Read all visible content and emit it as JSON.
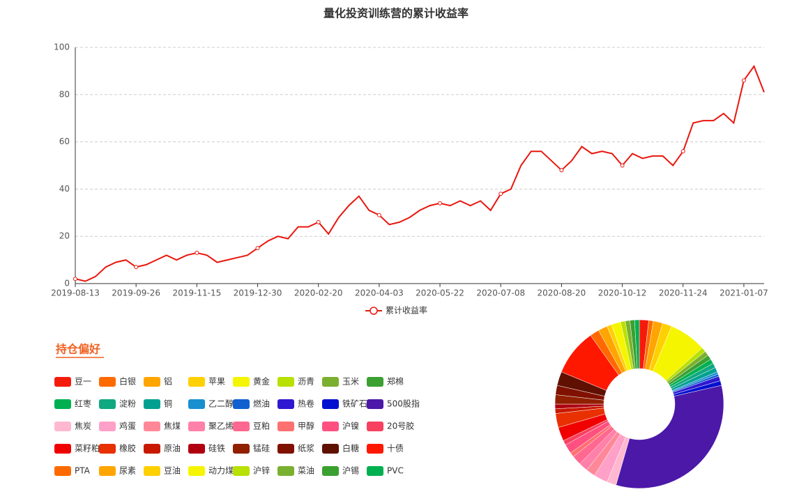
{
  "chart_data": [
    {
      "type": "line",
      "title": "量化投资训练营的累计收益率",
      "categories": [
        "2019-08-13",
        null,
        null,
        null,
        null,
        null,
        "2019-09-26",
        null,
        null,
        null,
        null,
        null,
        "2019-11-15",
        null,
        null,
        null,
        null,
        null,
        "2019-12-30",
        null,
        null,
        null,
        null,
        null,
        "2020-02-20",
        null,
        null,
        null,
        null,
        null,
        "2020-04-03",
        null,
        null,
        null,
        null,
        null,
        "2020-05-22",
        null,
        null,
        null,
        null,
        null,
        "2020-07-08",
        null,
        null,
        null,
        null,
        null,
        "2020-08-20",
        null,
        null,
        null,
        null,
        null,
        "2020-10-12",
        null,
        null,
        null,
        null,
        null,
        "2020-11-24",
        null,
        null,
        null,
        null,
        null,
        "2021-01-07",
        null,
        null
      ],
      "series": [
        {
          "name": "累计收益率",
          "color": "#e8160c",
          "values": [
            2,
            1,
            3,
            7,
            9,
            10,
            7,
            8,
            10,
            12,
            10,
            12,
            13,
            12,
            9,
            10,
            11,
            12,
            15,
            18,
            20,
            19,
            24,
            24,
            26,
            21,
            28,
            33,
            37,
            31,
            29,
            25,
            26,
            28,
            31,
            33,
            34,
            33,
            35,
            33,
            35,
            31,
            38,
            40,
            50,
            56,
            56,
            52,
            48,
            52,
            58,
            55,
            56,
            55,
            50,
            55,
            53,
            54,
            54,
            50,
            56,
            68,
            69,
            69,
            72,
            68,
            86,
            92,
            81
          ]
        }
      ],
      "ylim": [
        0,
        100
      ],
      "yticks": [
        0,
        20,
        40,
        60,
        80,
        100
      ],
      "grid": true
    },
    {
      "type": "pie",
      "title": "持仓偏好",
      "categories": [
        "豆一",
        "白银",
        "铝",
        "苹果",
        "黄金",
        "沥青",
        "玉米",
        "郑棉",
        "红枣",
        "淀粉",
        "铜",
        "乙二醇",
        "燃油",
        "热卷",
        "铁矿石",
        "500股指",
        "焦炭",
        "鸡蛋",
        "焦煤",
        "聚乙烯",
        "豆粕",
        "甲醇",
        "沪镍",
        "20号胶",
        "菜籽粕",
        "橡胶",
        "原油",
        "硅铁",
        "锰硅",
        "纸浆",
        "白糖",
        "十债",
        "PTA",
        "尿素",
        "豆油",
        "动力煤",
        "沪锌",
        "菜油",
        "沪锡",
        "PVC"
      ],
      "values": [
        2,
        1,
        2,
        2,
        8,
        1,
        1,
        1,
        1,
        1,
        1,
        0.5,
        0.5,
        1,
        1,
        37,
        2,
        3,
        2,
        2,
        2,
        1,
        2,
        1,
        3,
        3,
        1,
        1,
        2,
        2,
        3,
        10,
        2,
        2,
        1,
        2,
        1,
        1,
        1,
        1
      ],
      "colors": [
        "#f51b0b",
        "#ff6a00",
        "#ffa500",
        "#ffd000",
        "#f5f500",
        "#b8e000",
        "#7ab030",
        "#3aa030",
        "#00b050",
        "#10a880",
        "#00a090",
        "#1890d0",
        "#1060d0",
        "#3018d0",
        "#0010d0",
        "#4b18a8",
        "#ffb8d0",
        "#ffa0c8",
        "#ff8898",
        "#ff80a8",
        "#ff6890",
        "#ff7070",
        "#ff5080",
        "#f84060",
        "#f00000",
        "#e83000",
        "#c81800",
        "#b00010",
        "#902000",
        "#801000",
        "#601000",
        "#ff1800",
        "#ff6a00",
        "#ffa500",
        "#ffd000",
        "#f5f500",
        "#b8e000",
        "#7ab030",
        "#3aa030",
        "#00b050"
      ]
    }
  ]
}
